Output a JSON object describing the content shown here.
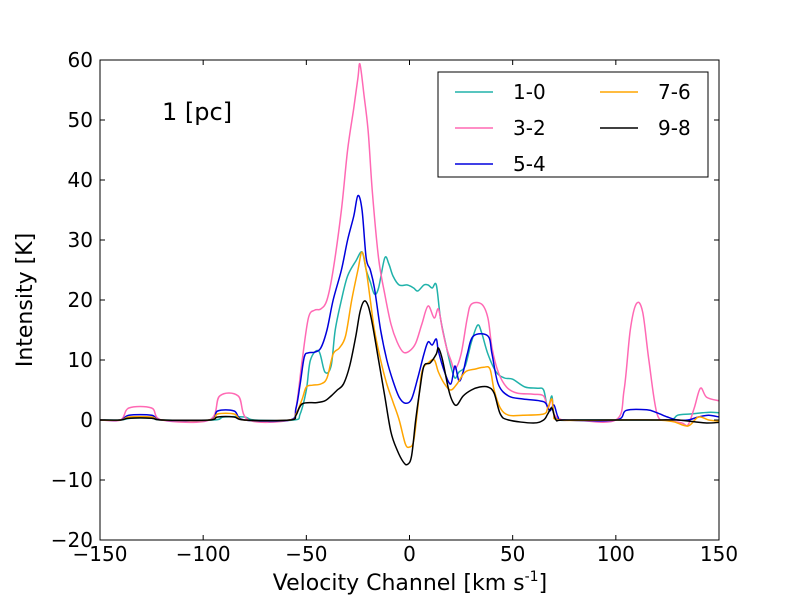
{
  "chart_data": {
    "type": "line",
    "title": "",
    "annotation": "1 [pc]",
    "xlabel_main": "Velocity Channel [km s",
    "xlabel_sup": "-1",
    "xlabel_end": "]",
    "ylabel": "Intensity [K]",
    "xlim": [
      -150,
      150
    ],
    "ylim": [
      -20,
      60
    ],
    "xticks": [
      -150,
      -100,
      -50,
      0,
      50,
      100,
      150
    ],
    "yticks": [
      -20,
      -10,
      0,
      10,
      20,
      30,
      40,
      50,
      60
    ],
    "xtick_labels": [
      "−150",
      "−100",
      "−50",
      "0",
      "50",
      "100",
      "150"
    ],
    "ytick_labels": [
      "−20",
      "−10",
      "0",
      "10",
      "20",
      "30",
      "40",
      "50",
      "60"
    ],
    "grid": false,
    "legend_position": "top-right",
    "series": [
      {
        "name": "1-0",
        "color": "#20b2aa",
        "points": [
          [
            -150,
            0
          ],
          [
            -140,
            0
          ],
          [
            -135,
            0.3
          ],
          [
            -125,
            0.3
          ],
          [
            -120,
            0
          ],
          [
            -95,
            0
          ],
          [
            -90,
            0.5
          ],
          [
            -80,
            0.5
          ],
          [
            -75,
            0
          ],
          [
            -56,
            0
          ],
          [
            -53,
            1
          ],
          [
            -50,
            5
          ],
          [
            -48,
            10
          ],
          [
            -44,
            11.5
          ],
          [
            -41,
            8
          ],
          [
            -38,
            9
          ],
          [
            -36,
            15
          ],
          [
            -33,
            20
          ],
          [
            -30,
            24
          ],
          [
            -26,
            26.5
          ],
          [
            -23,
            28
          ],
          [
            -21,
            25
          ],
          [
            -19,
            23
          ],
          [
            -17,
            21
          ],
          [
            -15,
            22
          ],
          [
            -12,
            27
          ],
          [
            -10,
            26
          ],
          [
            -8,
            24
          ],
          [
            -5,
            22.5
          ],
          [
            -1,
            22.5
          ],
          [
            2,
            22
          ],
          [
            4,
            21.5
          ],
          [
            7,
            22.5
          ],
          [
            9,
            22.5
          ],
          [
            11,
            22
          ],
          [
            13,
            22.5
          ],
          [
            15,
            17
          ],
          [
            18,
            12
          ],
          [
            20,
            9
          ],
          [
            22,
            7
          ],
          [
            24,
            8
          ],
          [
            27,
            9
          ],
          [
            30,
            13
          ],
          [
            33,
            15.8
          ],
          [
            35,
            14.5
          ],
          [
            38,
            11
          ],
          [
            42,
            8
          ],
          [
            46,
            7
          ],
          [
            50,
            6.8
          ],
          [
            56,
            5.5
          ],
          [
            62,
            5.3
          ],
          [
            65,
            5
          ],
          [
            67,
            2
          ],
          [
            69,
            4
          ],
          [
            70,
            1
          ],
          [
            73,
            0
          ],
          [
            80,
            0
          ],
          [
            100,
            0
          ],
          [
            120,
            0
          ],
          [
            127,
            0
          ],
          [
            130,
            0.8
          ],
          [
            136,
            1
          ],
          [
            142,
            1.2
          ],
          [
            146,
            1.3
          ],
          [
            150,
            1.2
          ]
        ]
      },
      {
        "name": "3-2",
        "color": "#ff69b4",
        "points": [
          [
            -150,
            0
          ],
          [
            -140,
            0
          ],
          [
            -136,
            2
          ],
          [
            -125,
            2
          ],
          [
            -120,
            0
          ],
          [
            -97,
            0
          ],
          [
            -92,
            4
          ],
          [
            -83,
            4
          ],
          [
            -78,
            0
          ],
          [
            -58,
            0
          ],
          [
            -55,
            2
          ],
          [
            -52,
            10
          ],
          [
            -49,
            17
          ],
          [
            -46,
            18.3
          ],
          [
            -43,
            18.5
          ],
          [
            -40,
            20
          ],
          [
            -37,
            25
          ],
          [
            -33,
            35
          ],
          [
            -30,
            45
          ],
          [
            -27,
            52
          ],
          [
            -25,
            57
          ],
          [
            -24,
            59.3
          ],
          [
            -22,
            54
          ],
          [
            -20,
            48
          ],
          [
            -18,
            38
          ],
          [
            -15,
            27
          ],
          [
            -12,
            21
          ],
          [
            -9,
            16
          ],
          [
            -6,
            13
          ],
          [
            -3,
            11.3
          ],
          [
            0,
            11.5
          ],
          [
            3,
            12.8
          ],
          [
            6,
            16
          ],
          [
            9,
            19
          ],
          [
            12,
            17
          ],
          [
            14,
            18.5
          ],
          [
            16,
            15
          ],
          [
            18,
            12
          ],
          [
            20,
            10
          ],
          [
            22,
            8.5
          ],
          [
            25,
            11
          ],
          [
            28,
            17
          ],
          [
            30,
            19.3
          ],
          [
            35,
            19.3
          ],
          [
            38,
            17
          ],
          [
            40,
            12
          ],
          [
            43,
            8
          ],
          [
            47,
            5.5
          ],
          [
            52,
            4.5
          ],
          [
            60,
            4.3
          ],
          [
            65,
            4
          ],
          [
            67,
            2
          ],
          [
            69,
            3.5
          ],
          [
            70,
            1
          ],
          [
            74,
            0
          ],
          [
            80,
            0
          ],
          [
            100,
            0
          ],
          [
            104,
            5
          ],
          [
            107,
            15
          ],
          [
            110,
            19.4
          ],
          [
            113,
            18
          ],
          [
            116,
            10
          ],
          [
            120,
            1
          ],
          [
            125,
            0
          ],
          [
            132,
            -0.5
          ],
          [
            135,
            -0.8
          ],
          [
            138,
            2
          ],
          [
            141,
            5.3
          ],
          [
            144,
            3.8
          ],
          [
            150,
            3.2
          ]
        ]
      },
      {
        "name": "5-4",
        "color": "#0000dd",
        "points": [
          [
            -150,
            0
          ],
          [
            -140,
            0
          ],
          [
            -136,
            0.8
          ],
          [
            -125,
            0.8
          ],
          [
            -120,
            0
          ],
          [
            -97,
            0
          ],
          [
            -93,
            1.5
          ],
          [
            -85,
            1.5
          ],
          [
            -80,
            0
          ],
          [
            -58,
            0
          ],
          [
            -55,
            2
          ],
          [
            -53,
            6
          ],
          [
            -51,
            10.5
          ],
          [
            -49,
            11.2
          ],
          [
            -46,
            11.3
          ],
          [
            -43,
            12
          ],
          [
            -40,
            15
          ],
          [
            -37,
            20
          ],
          [
            -33,
            25
          ],
          [
            -30,
            30
          ],
          [
            -27,
            34
          ],
          [
            -25,
            37.4
          ],
          [
            -23,
            35
          ],
          [
            -21,
            27
          ],
          [
            -19,
            25
          ],
          [
            -17,
            22
          ],
          [
            -14,
            15
          ],
          [
            -11,
            10
          ],
          [
            -8,
            6.5
          ],
          [
            -5,
            3.8
          ],
          [
            -2,
            2.8
          ],
          [
            1,
            3.5
          ],
          [
            4,
            7
          ],
          [
            7,
            11
          ],
          [
            9,
            13
          ],
          [
            11,
            12.5
          ],
          [
            13,
            13.5
          ],
          [
            14,
            11.5
          ],
          [
            17,
            8
          ],
          [
            20,
            6
          ],
          [
            22,
            9
          ],
          [
            24,
            6.5
          ],
          [
            26,
            8
          ],
          [
            28,
            11
          ],
          [
            31,
            14
          ],
          [
            38,
            14
          ],
          [
            40,
            11
          ],
          [
            43,
            6
          ],
          [
            48,
            4
          ],
          [
            55,
            3.5
          ],
          [
            63,
            3.2
          ],
          [
            66,
            2.8
          ],
          [
            68,
            1.5
          ],
          [
            70,
            2.5
          ],
          [
            72,
            0.5
          ],
          [
            75,
            0
          ],
          [
            100,
            0
          ],
          [
            105,
            1.6
          ],
          [
            115,
            1.7
          ],
          [
            120,
            1.2
          ],
          [
            125,
            0.5
          ],
          [
            130,
            0
          ],
          [
            135,
            0
          ],
          [
            140,
            0.5
          ],
          [
            145,
            0.8
          ],
          [
            150,
            0.5
          ]
        ]
      },
      {
        "name": "7-6",
        "color": "#ffa500",
        "points": [
          [
            -150,
            0
          ],
          [
            -140,
            0
          ],
          [
            -136,
            0.5
          ],
          [
            -125,
            0.5
          ],
          [
            -120,
            0
          ],
          [
            -97,
            0
          ],
          [
            -93,
            1
          ],
          [
            -85,
            1
          ],
          [
            -80,
            0
          ],
          [
            -58,
            0
          ],
          [
            -55,
            1
          ],
          [
            -52,
            3.5
          ],
          [
            -50,
            5.5
          ],
          [
            -47,
            5.8
          ],
          [
            -43,
            6
          ],
          [
            -40,
            7
          ],
          [
            -37,
            11
          ],
          [
            -34,
            12
          ],
          [
            -31,
            14
          ],
          [
            -28,
            20
          ],
          [
            -25,
            25
          ],
          [
            -23,
            28
          ],
          [
            -21,
            25
          ],
          [
            -19,
            20
          ],
          [
            -17,
            15
          ],
          [
            -14,
            10
          ],
          [
            -11,
            6
          ],
          [
            -8,
            3
          ],
          [
            -5,
            0
          ],
          [
            -2,
            -4
          ],
          [
            0,
            -4.5
          ],
          [
            2,
            -3.5
          ],
          [
            4,
            2
          ],
          [
            6,
            8
          ],
          [
            9,
            9.5
          ],
          [
            12,
            10
          ],
          [
            14,
            8
          ],
          [
            17,
            6
          ],
          [
            20,
            5
          ],
          [
            23,
            6
          ],
          [
            27,
            8
          ],
          [
            32,
            8.5
          ],
          [
            36,
            8.8
          ],
          [
            39,
            8.5
          ],
          [
            41,
            5
          ],
          [
            44,
            2
          ],
          [
            48,
            0.8
          ],
          [
            55,
            0.8
          ],
          [
            65,
            1
          ],
          [
            67,
            2
          ],
          [
            69,
            3.5
          ],
          [
            70,
            1
          ],
          [
            73,
            0
          ],
          [
            100,
            0
          ],
          [
            120,
            0
          ],
          [
            128,
            -0.3
          ],
          [
            135,
            -1
          ],
          [
            140,
            0.5
          ],
          [
            145,
            0
          ],
          [
            150,
            -0.2
          ]
        ]
      },
      {
        "name": "9-8",
        "color": "#000000",
        "points": [
          [
            -150,
            0
          ],
          [
            -140,
            0
          ],
          [
            -136,
            0.3
          ],
          [
            -125,
            0.3
          ],
          [
            -120,
            0
          ],
          [
            -97,
            0
          ],
          [
            -93,
            0.5
          ],
          [
            -85,
            0.5
          ],
          [
            -80,
            0
          ],
          [
            -58,
            0
          ],
          [
            -55,
            0.8
          ],
          [
            -52,
            2.7
          ],
          [
            -45,
            2.9
          ],
          [
            -41,
            3.2
          ],
          [
            -38,
            4
          ],
          [
            -35,
            5
          ],
          [
            -32,
            6
          ],
          [
            -29,
            9
          ],
          [
            -26,
            14
          ],
          [
            -24,
            18
          ],
          [
            -22,
            19.8
          ],
          [
            -20,
            19
          ],
          [
            -18,
            16
          ],
          [
            -15,
            10
          ],
          [
            -12,
            4
          ],
          [
            -9,
            -2
          ],
          [
            -6,
            -5
          ],
          [
            -3,
            -7
          ],
          [
            -1,
            -7.4
          ],
          [
            1,
            -6
          ],
          [
            3,
            0
          ],
          [
            5,
            5
          ],
          [
            7,
            9
          ],
          [
            10,
            9.5
          ],
          [
            13,
            11
          ],
          [
            14,
            12
          ],
          [
            16,
            10
          ],
          [
            19,
            5
          ],
          [
            21,
            3
          ],
          [
            23,
            2.5
          ],
          [
            26,
            4
          ],
          [
            30,
            5
          ],
          [
            34,
            5.5
          ],
          [
            38,
            5.5
          ],
          [
            41,
            4.5
          ],
          [
            44,
            1
          ],
          [
            48,
            0
          ],
          [
            60,
            -0.5
          ],
          [
            65,
            0
          ],
          [
            67,
            1
          ],
          [
            69,
            2
          ],
          [
            71,
            0
          ],
          [
            75,
            0
          ],
          [
            100,
            0
          ],
          [
            120,
            0
          ],
          [
            130,
            0
          ],
          [
            138,
            -0.3
          ],
          [
            144,
            -0.5
          ],
          [
            150,
            -0.4
          ]
        ]
      }
    ]
  }
}
